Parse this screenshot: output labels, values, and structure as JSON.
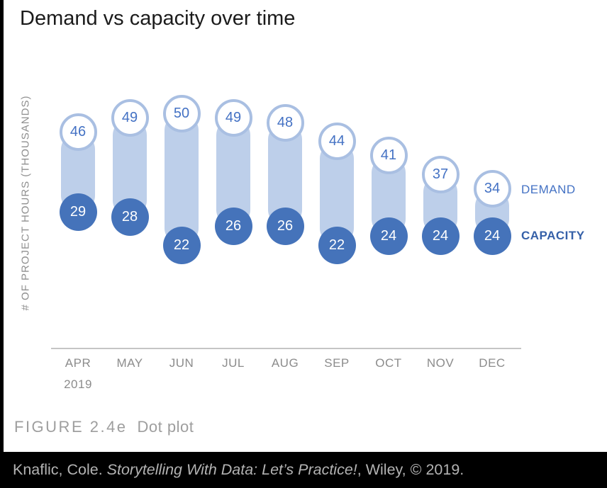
{
  "chart": {
    "title": "Demand vs capacity over time",
    "y_axis_label": "# OF PROJECT HOURS (THOUSANDS)",
    "year_label": "2019"
  },
  "chart_data": {
    "type": "scatter",
    "subtype": "dot-plot-range",
    "title": "Demand vs capacity over time",
    "categories": [
      "APR",
      "MAY",
      "JUN",
      "JUL",
      "AUG",
      "SEP",
      "OCT",
      "NOV",
      "DEC"
    ],
    "series": [
      {
        "name": "DEMAND",
        "values": [
          46,
          49,
          50,
          49,
          48,
          44,
          41,
          37,
          34
        ]
      },
      {
        "name": "CAPACITY",
        "values": [
          29,
          28,
          22,
          26,
          26,
          22,
          24,
          24,
          24
        ]
      }
    ],
    "xlabel": "2019",
    "ylabel": "# OF PROJECT HOURS (THOUSANDS)",
    "ylim": [
      0,
      50
    ],
    "grid": false,
    "legend_position": "right",
    "colors": {
      "demand_fill": "#ffffff",
      "demand_ring": "#a9bfe2",
      "demand_text": "#4472c4",
      "capacity_fill": "#4573ba",
      "capacity_text": "#ffffff",
      "band": "#bdcfea",
      "axis_line": "#c5c5c5",
      "tick_text": "#8c8c8c"
    }
  },
  "legend": {
    "demand": "DEMAND",
    "capacity": "CAPACITY"
  },
  "caption": {
    "figure": "FIGURE 2.4e",
    "description": "Dot plot"
  },
  "footer": {
    "prefix": "Knaflic, Cole. ",
    "italic": "Storytelling With Data: Let’s Practice!",
    "suffix": ", Wiley, © 2019."
  }
}
